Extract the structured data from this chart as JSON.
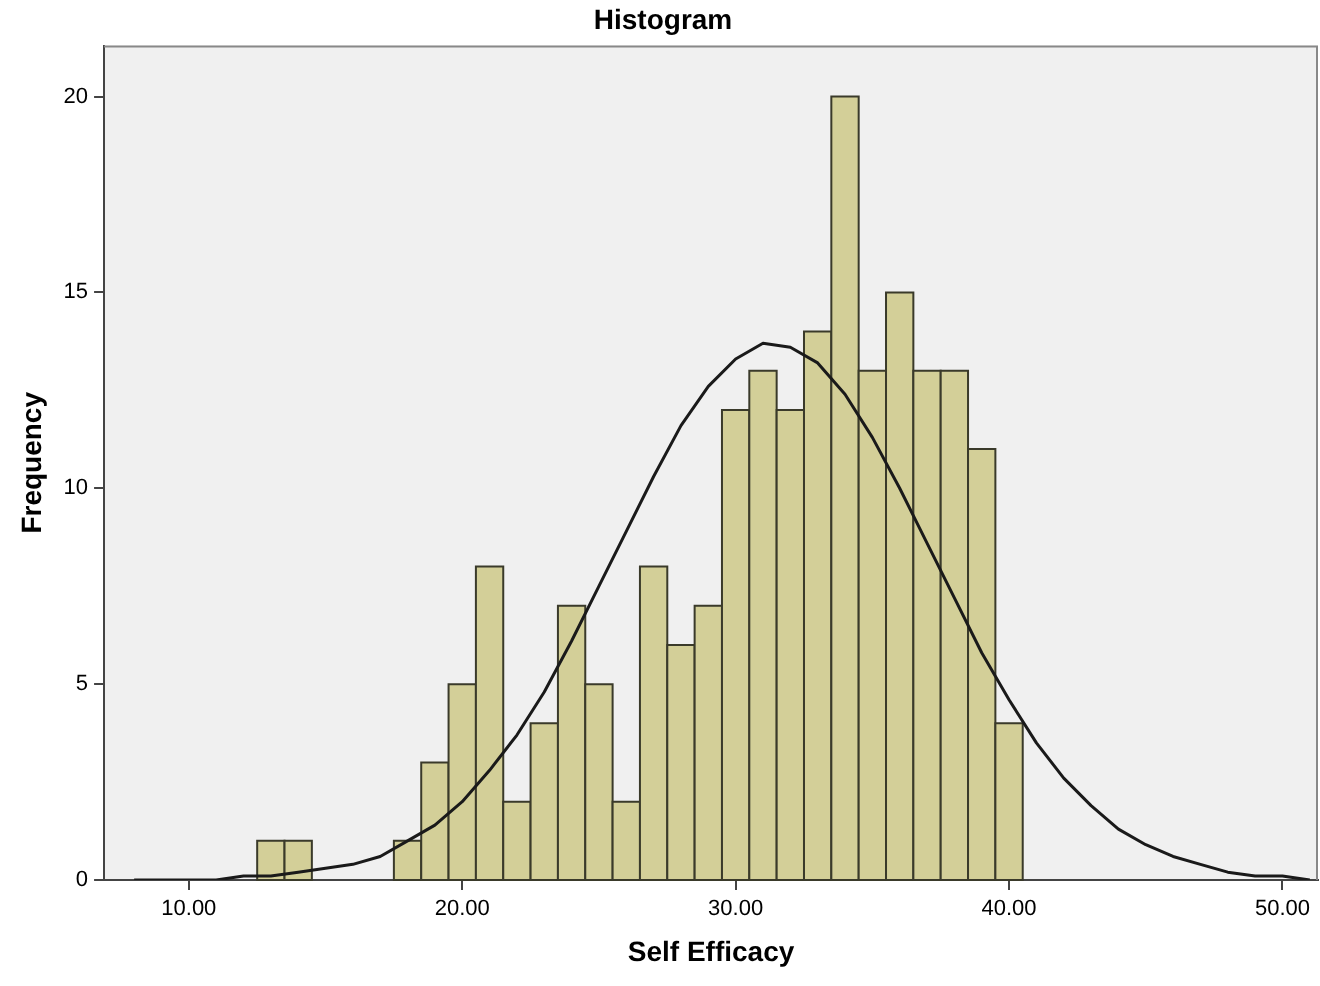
{
  "chart_data": {
    "type": "histogram",
    "title": "Histogram",
    "xlabel": "Self Efficacy",
    "ylabel": "Frequency",
    "bins": [
      12.5,
      13.5,
      14.5,
      17.5,
      18.5,
      19.5,
      20.5,
      21.5,
      22.5,
      23.5,
      24.5,
      25.5,
      26.5,
      27.5,
      28.5,
      29.5,
      30.5,
      31.5,
      32.5,
      33.5,
      34.5,
      35.5,
      36.5,
      37.5,
      38.5,
      39.5,
      40.5
    ],
    "series": [
      {
        "color": "#d3cf98",
        "values": [
          1,
          1,
          0,
          1,
          3,
          5,
          8,
          2,
          4,
          7,
          5,
          2,
          8,
          6,
          7,
          12,
          13,
          12,
          14,
          20,
          13,
          15,
          13,
          13,
          11,
          4
        ]
      },
      {
        "type": "line",
        "color": "#1a1a1a",
        "x": [
          8,
          9,
          10,
          11,
          12,
          13,
          14,
          15,
          16,
          17,
          18,
          19,
          20,
          21,
          22,
          23,
          24,
          25,
          26,
          27,
          28,
          29,
          30,
          31,
          32,
          33,
          34,
          35,
          36,
          37,
          38,
          39,
          40,
          41,
          42,
          43,
          44,
          45,
          46,
          47,
          48,
          49,
          50,
          51
        ],
        "values": [
          0,
          0,
          0,
          0,
          0.1,
          0.1,
          0.2,
          0.3,
          0.4,
          0.6,
          1,
          1.4,
          2,
          2.8,
          3.7,
          4.8,
          6.1,
          7.5,
          8.9,
          10.3,
          11.6,
          12.6,
          13.3,
          13.7,
          13.6,
          13.2,
          12.4,
          11.3,
          10,
          8.6,
          7.2,
          5.8,
          4.6,
          3.5,
          2.6,
          1.9,
          1.3,
          0.9,
          0.6,
          0.4,
          0.2,
          0.1,
          0.1,
          0
        ]
      }
    ],
    "xlim": [
      6.9,
      51.3
    ],
    "xticks": [
      {
        "value": 10,
        "label": "10.00"
      },
      {
        "value": 20,
        "label": "20.00"
      },
      {
        "value": 30,
        "label": "30.00"
      },
      {
        "value": 40,
        "label": "40.00"
      },
      {
        "value": 50,
        "label": "50.00"
      }
    ],
    "ylim": [
      0,
      21.3
    ],
    "yticks": [
      0,
      5,
      10,
      15,
      20
    ],
    "grid": false,
    "legend": false,
    "marker": "none"
  }
}
